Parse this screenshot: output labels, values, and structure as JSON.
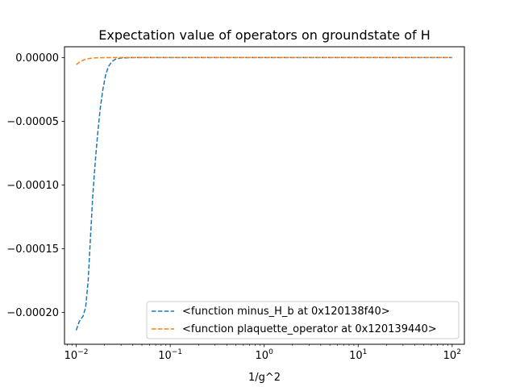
{
  "chart_data": {
    "type": "line",
    "title": "Expectation value of operators on groundstate of H",
    "xlabel": "1/g^2",
    "ylabel": "",
    "xscale": "log",
    "xlim": [
      0.0075,
      135
    ],
    "ylim": [
      -0.000225,
      8.5e-06
    ],
    "xticks": [
      {
        "value": 0.01,
        "base": "10",
        "exp": "−2"
      },
      {
        "value": 0.1,
        "base": "10",
        "exp": "−1"
      },
      {
        "value": 1,
        "base": "10",
        "exp": "0"
      },
      {
        "value": 10,
        "base": "10",
        "exp": "1"
      },
      {
        "value": 100,
        "base": "10",
        "exp": "2"
      }
    ],
    "yticks": [
      {
        "value": 0,
        "label": "0.00000"
      },
      {
        "value": -5e-05,
        "label": "−0.00005"
      },
      {
        "value": -0.0001,
        "label": "−0.00010"
      },
      {
        "value": -0.00015,
        "label": "−0.00015"
      },
      {
        "value": -0.0002,
        "label": "−0.00020"
      }
    ],
    "grid": false,
    "legend_position": "lower-right",
    "series": [
      {
        "name": "<function minus_H_b at 0x120138f40>",
        "color": "#1f77b4",
        "style": "dashed",
        "x": [
          0.01,
          0.0108,
          0.0118,
          0.0126,
          0.0134,
          0.0142,
          0.015,
          0.016,
          0.017,
          0.018,
          0.0192,
          0.0205,
          0.022,
          0.024,
          0.0265,
          0.03,
          0.04,
          0.1,
          1,
          10,
          100
        ],
        "y": [
          -0.000214,
          -0.000207,
          -0.000203,
          -0.000196,
          -0.000175,
          -0.00014,
          -0.000108,
          -8e-05,
          -5.8e-05,
          -4e-05,
          -2.5e-05,
          -1.4e-05,
          -7e-06,
          -3e-06,
          -1e-06,
          -3e-07,
          0,
          0,
          0,
          0,
          0
        ]
      },
      {
        "name": "<function plaquette_operator at 0x120139440>",
        "color": "#ff7f0e",
        "style": "dashed",
        "x": [
          0.01,
          0.011,
          0.012,
          0.0135,
          0.015,
          0.018,
          0.025,
          0.1,
          1,
          10,
          100
        ],
        "y": [
          -5.5e-06,
          -3.2e-06,
          -1.8e-06,
          -8e-07,
          -3e-07,
          -1e-07,
          0,
          0,
          0,
          0,
          0
        ]
      }
    ]
  }
}
